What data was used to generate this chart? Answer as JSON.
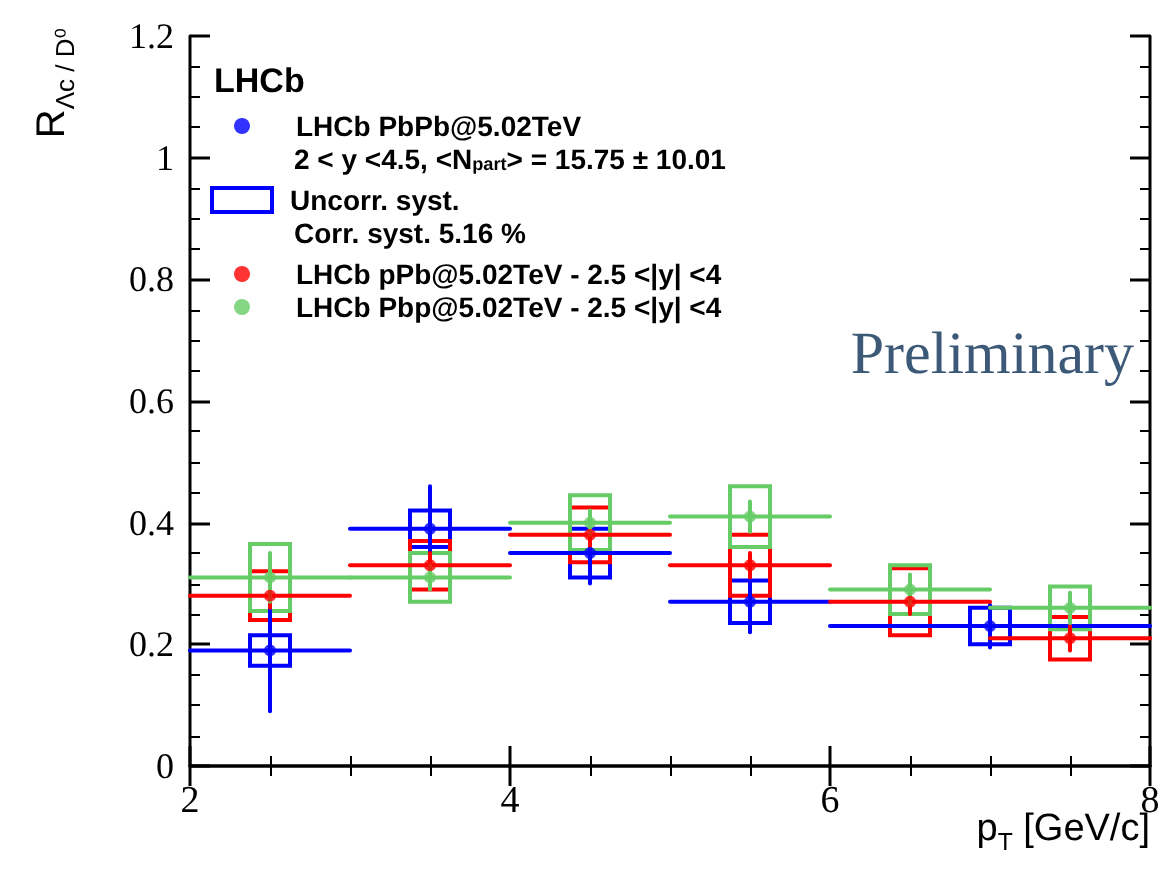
{
  "chart_data": {
    "type": "scatter",
    "xlabel": "p$_{T}$ [GeV/c]",
    "ylabel": "R$_{Λc / D⁰}$",
    "xlim": [
      2,
      8
    ],
    "xticks": [
      2,
      4,
      6,
      8
    ],
    "ylim": [
      0,
      1.2
    ],
    "yticks": [
      0,
      0.2,
      0.4,
      0.6,
      0.8,
      1,
      1.2
    ],
    "grid": false,
    "legend": "top left",
    "marker": "circle",
    "annotations": [
      "LHCb",
      "2 < y <4.5, <N$_{part}$> = 15.75 ± 10.01",
      "Corr. syst. 5.16 %",
      "Preliminary"
    ],
    "series": [
      {
        "name": "LHCb PbPb@5.02TeV",
        "color": "#0000ff",
        "x": [
          2.5,
          3.5,
          4.5,
          5.5,
          7
        ],
        "values": [
          0.19,
          0.39,
          0.35,
          0.27,
          0.23
        ],
        "errors": [
          0.1,
          0.07,
          0.05,
          0.05,
          0.035
        ],
        "xerrors": [
          0.5,
          0.5,
          0.5,
          0.5,
          1
        ]
      },
      {
        "name": "Uncorr. syst.",
        "type": "bar",
        "color": "#0000ff",
        "x": [
          2.5,
          3.5,
          4.5,
          5.5,
          7
        ],
        "base": [
          0.165,
          0.36,
          0.31,
          0.235,
          0.2
        ],
        "values": [
          0.05,
          0.06,
          0.08,
          0.07,
          0.06
        ]
      },
      {
        "name": "LHCb pPb@5.02TeV - 2.5 <|y| <4",
        "color": "#ff0000",
        "x": [
          2.5,
          3.5,
          4.5,
          5.5,
          6.5,
          7.5
        ],
        "values": [
          0.28,
          0.33,
          0.38,
          0.33,
          0.27,
          0.21
        ],
        "errors": [
          0.02,
          0.02,
          0.02,
          0.02,
          0.02,
          0.02
        ],
        "xerrors": [
          0.5,
          0.5,
          0.5,
          0.5,
          0.5,
          0.5
        ]
      },
      {
        "type": "bar",
        "color": "#ff0000",
        "x": [
          2.5,
          3.5,
          4.5,
          5.5,
          6.5,
          7.5
        ],
        "base": [
          0.24,
          0.29,
          0.335,
          0.28,
          0.215,
          0.175
        ],
        "values": [
          0.08,
          0.08,
          0.09,
          0.1,
          0.11,
          0.07
        ]
      },
      {
        "name": "LHCb Pbp@5.02TeV - 2.5 <|y| <4",
        "color": "#66cc66",
        "x": [
          2.5,
          3.5,
          4.5,
          5.5,
          6.5,
          7.5
        ],
        "values": [
          0.31,
          0.31,
          0.4,
          0.41,
          0.29,
          0.26
        ],
        "errors": [
          0.04,
          0.02,
          0.02,
          0.025,
          0.025,
          0.025
        ],
        "xerrors": [
          0.5,
          0.5,
          0.5,
          0.5,
          0.5,
          0.5
        ]
      },
      {
        "type": "bar",
        "color": "#66cc66",
        "x": [
          2.5,
          3.5,
          4.5,
          5.5,
          6.5,
          7.5
        ],
        "base": [
          0.255,
          0.27,
          0.355,
          0.36,
          0.25,
          0.225
        ],
        "values": [
          0.11,
          0.08,
          0.09,
          0.1,
          0.08,
          0.07
        ]
      }
    ]
  }
}
